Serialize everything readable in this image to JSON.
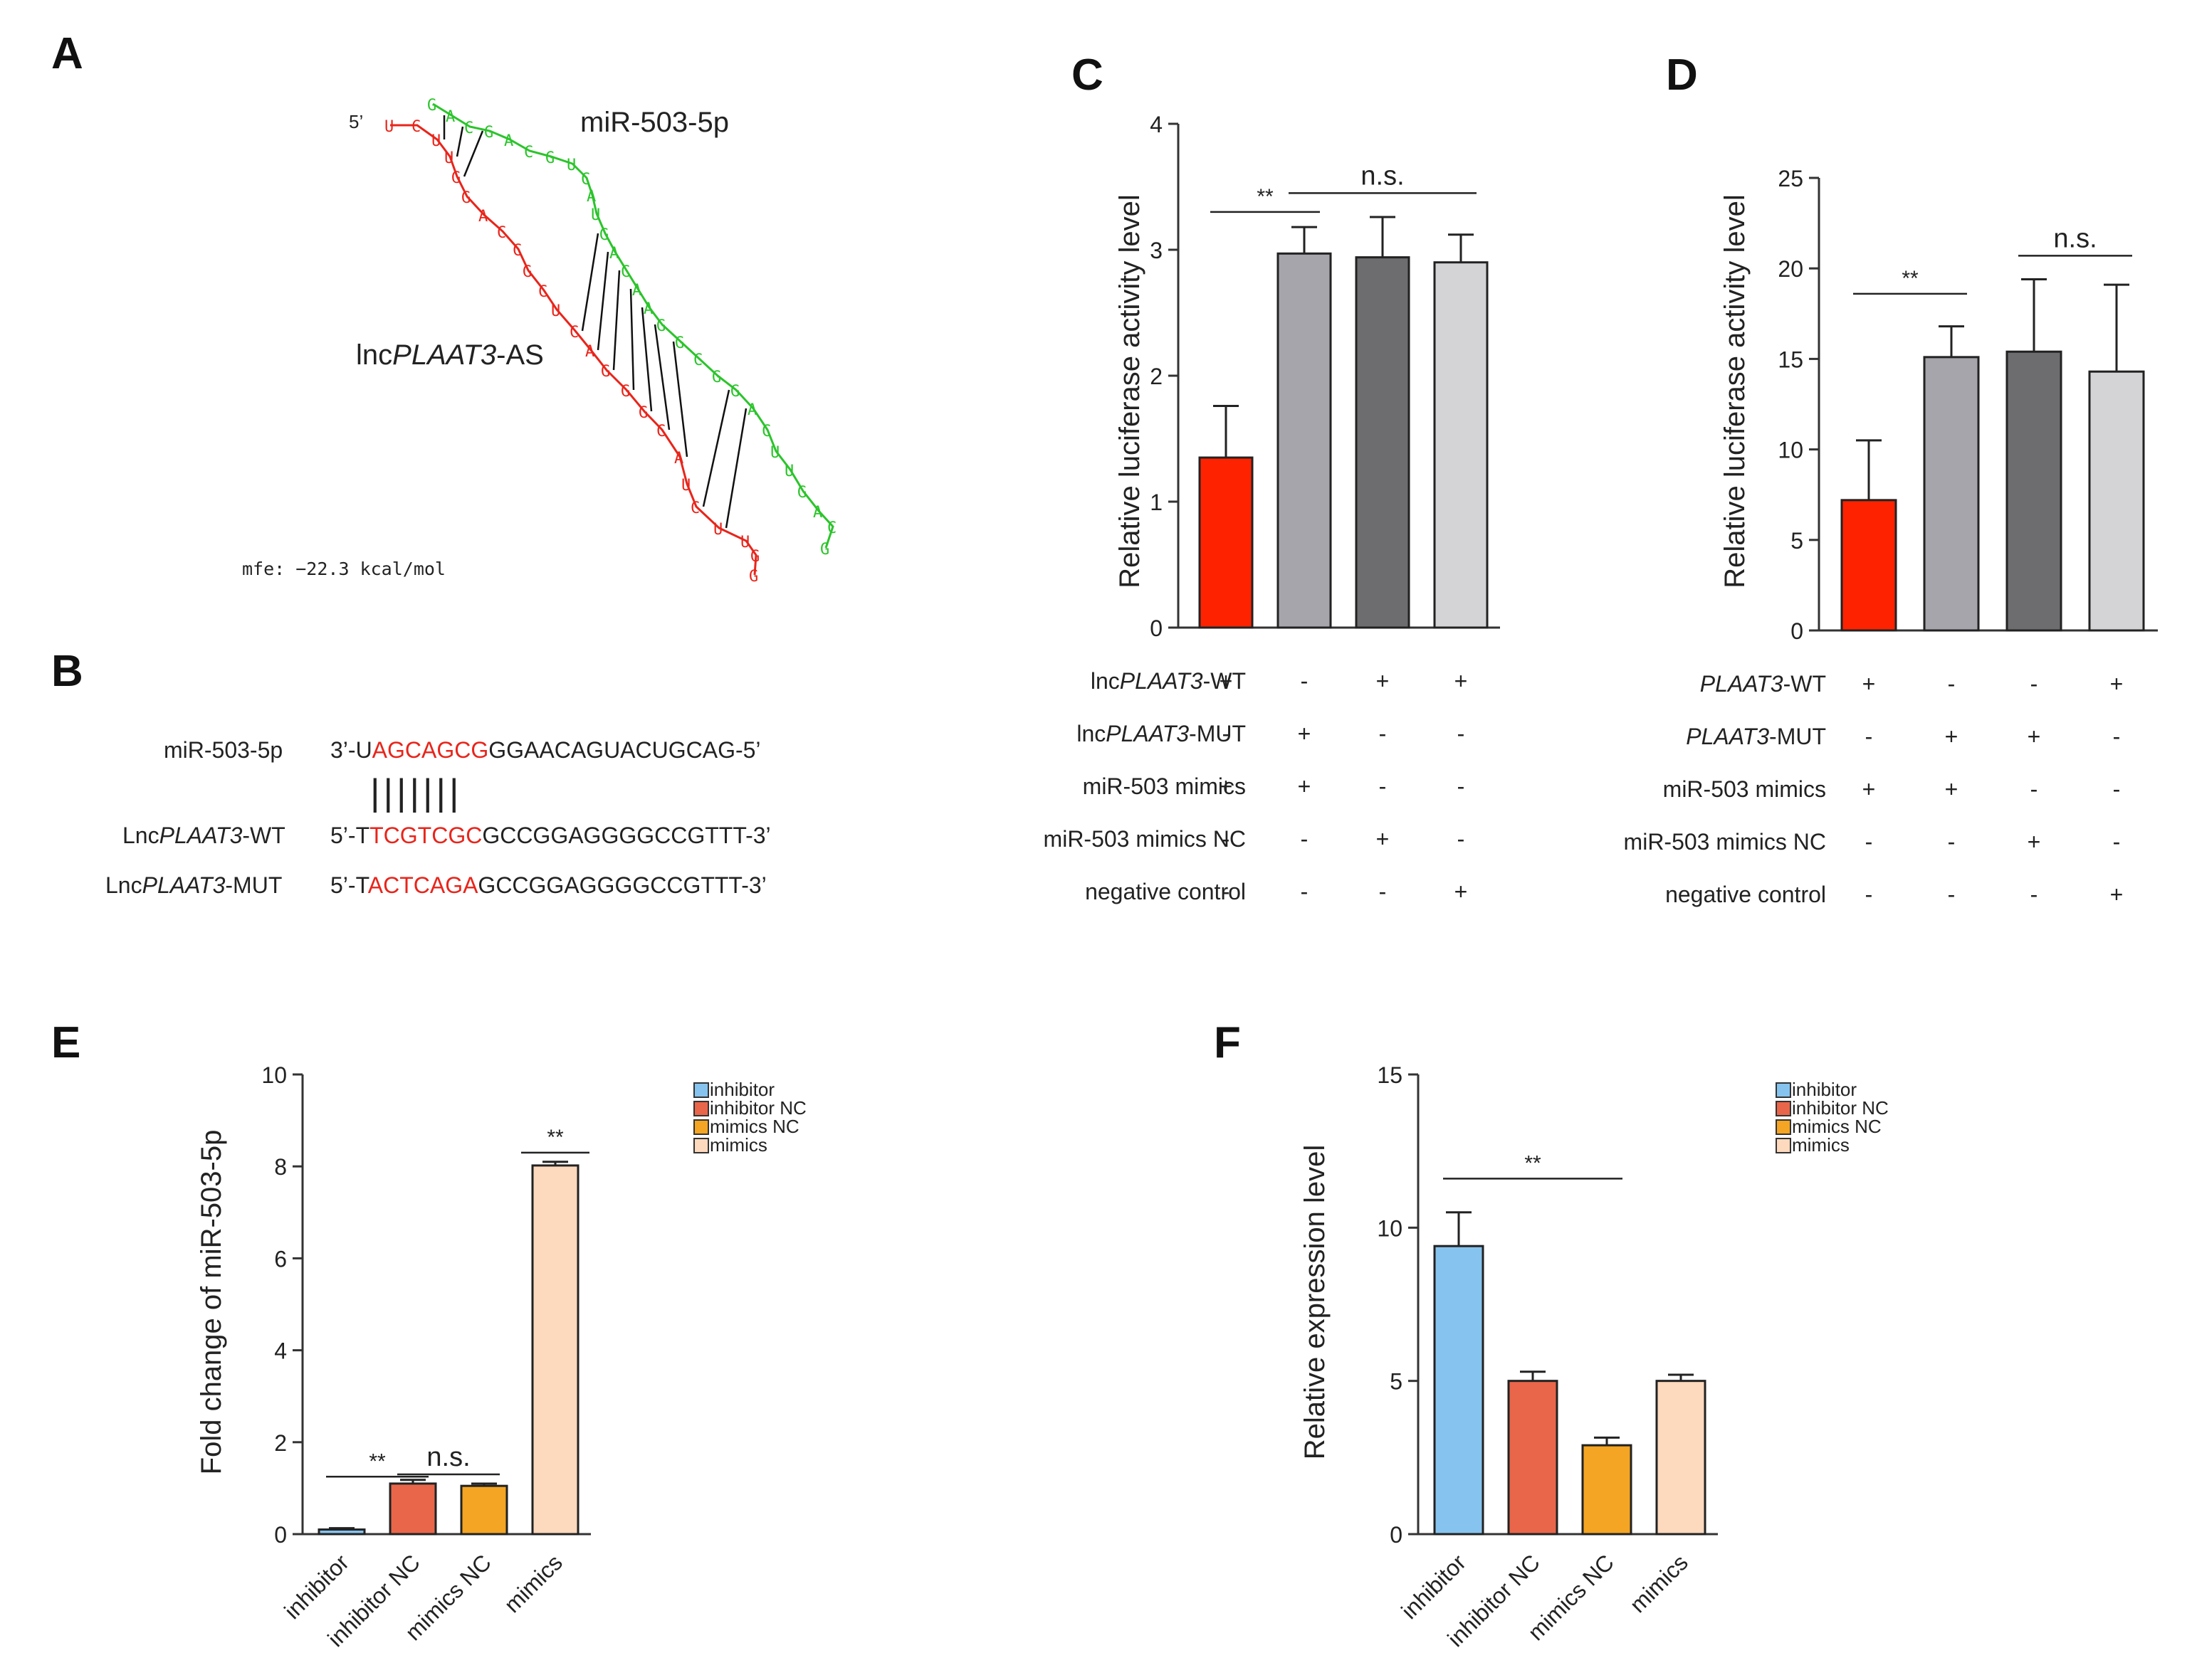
{
  "colors": {
    "red_bar": "#ff2200",
    "grey1": "#a5a5ab",
    "grey2": "#6d6d70",
    "grey3": "#d4d4d6",
    "blue": "#86c4ef",
    "orange_red": "#e9664a",
    "orange": "#f4a523",
    "peach": "#fdd9bd",
    "rna_red": "#e8251b",
    "rna_green": "#2bc42b"
  },
  "panelA": {
    "label": "A",
    "mirna_label": "miR-503-5p",
    "lnc_prefix": "lnc",
    "lnc_italic": "PLAAT3",
    "lnc_suffix": "-AS",
    "five_prime": "5’",
    "mfe": "mfe: −22.3 kcal/mol",
    "red_bases": [
      "U",
      "C",
      "U",
      "U",
      "G",
      "G",
      "A",
      "C",
      "C",
      "G",
      "C",
      "U",
      "C",
      "A",
      "G",
      "G",
      "G",
      "C",
      "A"
    ],
    "green_bases": [
      "G",
      "A",
      "C",
      "G",
      "A",
      "C",
      "G",
      "U",
      "C",
      "A",
      "U",
      "G",
      "A",
      "C",
      "A",
      "A",
      "G",
      "G",
      "C",
      "G",
      "G",
      "A",
      "C",
      "U",
      "U"
    ]
  },
  "panelB": {
    "label": "B",
    "rows": [
      {
        "name_pre": "miR-503-5p",
        "name_it": "",
        "name_post": "",
        "seq_pre": "3’-U",
        "seq_red": "AGCAGCG",
        "seq_post": "GGAACAGUACUGCAG-5’"
      },
      {
        "name_pre": "Lnc",
        "name_it": "PLAAT3",
        "name_post": "-WT",
        "seq_pre": "5’-T",
        "seq_red": "TCGTCGC",
        "seq_post": "GCCGGAGGGGCCGTTT-3’"
      },
      {
        "name_pre": "Lnc",
        "name_it": "PLAAT3",
        "name_post": "-MUT",
        "seq_pre": "5’-T",
        "seq_red": "ACTCAGA",
        "seq_post": "GCCGGAGGGGCCGTTT-3’"
      }
    ],
    "pairing": "|||||||"
  },
  "chart_data": [
    {
      "id": "C",
      "type": "bar",
      "title": "",
      "ylabel": "Relative luciferase activity level",
      "ylim": [
        0,
        4
      ],
      "yticks": [
        0,
        1,
        2,
        3,
        4
      ],
      "values": [
        1.35,
        2.97,
        2.94,
        2.9
      ],
      "errors": [
        0.41,
        0.21,
        0.32,
        0.22
      ],
      "colors": [
        "#ff2200",
        "#a5a5ab",
        "#6d6d70",
        "#d4d4d6"
      ],
      "annotations": [
        {
          "text": "**",
          "from": 0,
          "to": 1,
          "y": 3.3
        },
        {
          "text": "n.s.",
          "from": 1,
          "to": 3,
          "y": 3.45
        }
      ],
      "rows": [
        {
          "pre": "lnc",
          "it": "PLAAT3",
          "post": "-WT",
          "signs": [
            "+",
            "-",
            "+",
            "+"
          ]
        },
        {
          "pre": "lnc",
          "it": "PLAAT3",
          "post": "-MUT",
          "signs": [
            "-",
            "+",
            "-",
            "-"
          ]
        },
        {
          "pre": "miR-503 mimics",
          "it": "",
          "post": "",
          "signs": [
            "+",
            "+",
            "-",
            "-"
          ]
        },
        {
          "pre": "miR-503 mimics NC",
          "it": "",
          "post": "",
          "signs": [
            "-",
            "-",
            "+",
            "-"
          ]
        },
        {
          "pre": "negative control",
          "it": "",
          "post": "",
          "signs": [
            "-",
            "-",
            "-",
            "+"
          ]
        }
      ]
    },
    {
      "id": "D",
      "type": "bar",
      "title": "",
      "ylabel": "Relative luciferase activity level",
      "ylim": [
        0,
        25
      ],
      "yticks": [
        0,
        5,
        10,
        15,
        20,
        25
      ],
      "values": [
        7.2,
        15.1,
        15.4,
        14.3
      ],
      "errors": [
        3.3,
        1.7,
        4.0,
        4.8
      ],
      "colors": [
        "#ff2200",
        "#a5a5ab",
        "#6d6d70",
        "#d4d4d6"
      ],
      "annotations": [
        {
          "text": "**",
          "from": 0,
          "to": 1,
          "y": 18.6
        },
        {
          "text": "n.s.",
          "from": 2,
          "to": 3,
          "y": 20.7
        }
      ],
      "rows": [
        {
          "pre": "",
          "it": "PLAAT3",
          "post": "-WT",
          "signs": [
            "+",
            "-",
            "-",
            "+"
          ]
        },
        {
          "pre": "",
          "it": "PLAAT3",
          "post": "-MUT",
          "signs": [
            "-",
            "+",
            "+",
            "-"
          ]
        },
        {
          "pre": "miR-503 mimics",
          "it": "",
          "post": "",
          "signs": [
            "+",
            "+",
            "-",
            "-"
          ]
        },
        {
          "pre": "miR-503 mimics NC",
          "it": "",
          "post": "",
          "signs": [
            "-",
            "-",
            "+",
            "-"
          ]
        },
        {
          "pre": "negative control",
          "it": "",
          "post": "",
          "signs": [
            "-",
            "-",
            "-",
            "+"
          ]
        }
      ]
    },
    {
      "id": "E",
      "type": "bar",
      "title": "",
      "ylabel": "Fold change of miR-503-5p",
      "ylim": [
        0,
        10
      ],
      "yticks": [
        0,
        2,
        4,
        6,
        8,
        10
      ],
      "categories": [
        "inhibitor",
        "inhibitor NC",
        "mimics NC",
        "mimics"
      ],
      "values": [
        0.1,
        1.1,
        1.05,
        8.02
      ],
      "errors": [
        0.03,
        0.08,
        0.05,
        0.08
      ],
      "colors": [
        "#86c4ef",
        "#e9664a",
        "#f4a523",
        "#fdd9bd"
      ],
      "legend": [
        "inhibitor",
        "inhibitor NC",
        "mimics NC",
        "mimics"
      ],
      "annotations": [
        {
          "text": "**",
          "from": 0,
          "to": 1,
          "y": 1.25
        },
        {
          "text": "n.s.",
          "from": 1,
          "to": 2,
          "y": 1.3
        },
        {
          "text": "**",
          "from": 3,
          "to": 3,
          "y": 8.3
        }
      ]
    },
    {
      "id": "F",
      "type": "bar",
      "title": "",
      "ylabel": "Relative expression level",
      "ylim": [
        0,
        15
      ],
      "yticks": [
        0,
        5,
        10,
        15
      ],
      "categories": [
        "inhibitor",
        "inhibitor NC",
        "mimics NC",
        "mimics"
      ],
      "values": [
        9.4,
        5.0,
        2.9,
        5.0
      ],
      "errors": [
        1.1,
        0.3,
        0.25,
        0.2
      ],
      "colors": [
        "#86c4ef",
        "#e9664a",
        "#f4a523",
        "#fdd9bd"
      ],
      "legend": [
        "inhibitor",
        "inhibitor NC",
        "mimics NC",
        "mimics"
      ],
      "annotations": [
        {
          "text": "**",
          "from": 0,
          "to": 2,
          "y": 11.6
        }
      ]
    }
  ]
}
